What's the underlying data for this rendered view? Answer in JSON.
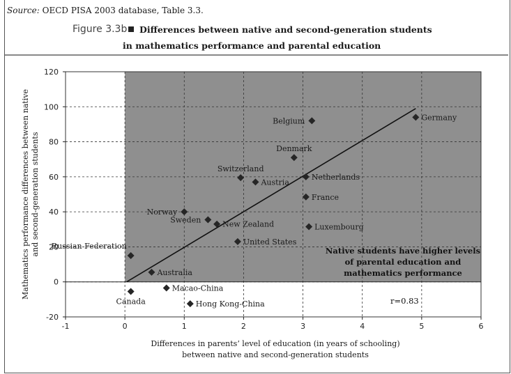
{
  "source": {
    "prefix": "Source:",
    "text": "OECD PISA 2003 database, Table 3.3."
  },
  "figure_label": "Figure 3.3b",
  "title_line1": "Differences between native and second-generation students",
  "title_line2": "in mathematics performance and parental education",
  "colors": {
    "shaded_quadrant": "#8f8f8f",
    "marker": "#262626",
    "fit_line": "#111111",
    "grid": "#333333"
  },
  "chart_data": {
    "type": "scatter",
    "title": "Differences between native and second-generation students in mathematics performance and parental education",
    "xlabel_line1": "Differences in parents’ level of education (in years of schooling)",
    "xlabel_line2": "between native and second-generation students",
    "ylabel_line1": "Mathematics performance differences between native",
    "ylabel_line2": "and second-generation students",
    "xlim": [
      -1,
      6
    ],
    "ylim": [
      -20,
      120
    ],
    "xticks": [
      -1,
      0,
      1,
      2,
      3,
      4,
      5,
      6
    ],
    "yticks": [
      -20,
      0,
      20,
      40,
      60,
      80,
      100,
      120
    ],
    "grid": "dashed",
    "shaded_region": "x >= 0 and y >= 0",
    "points": [
      {
        "label": "Germany",
        "x": 4.9,
        "y": 94,
        "anchor": "right"
      },
      {
        "label": "Belgium",
        "x": 3.15,
        "y": 92,
        "anchor": "left"
      },
      {
        "label": "Denmark",
        "x": 2.85,
        "y": 71,
        "anchor": "above"
      },
      {
        "label": "Switzerland",
        "x": 1.95,
        "y": 59.5,
        "anchor": "above"
      },
      {
        "label": "Austria",
        "x": 2.2,
        "y": 57,
        "anchor": "right"
      },
      {
        "label": "Netherlands",
        "x": 3.05,
        "y": 60,
        "anchor": "right"
      },
      {
        "label": "France",
        "x": 3.05,
        "y": 48.5,
        "anchor": "right"
      },
      {
        "label": "Norway",
        "x": 1.0,
        "y": 40,
        "anchor": "left"
      },
      {
        "label": "Sweden",
        "x": 1.4,
        "y": 35.5,
        "anchor": "left"
      },
      {
        "label": "New Zealand",
        "x": 1.55,
        "y": 33,
        "anchor": "right"
      },
      {
        "label": "Luxembourg",
        "x": 3.1,
        "y": 31.5,
        "anchor": "right"
      },
      {
        "label": "United States",
        "x": 1.9,
        "y": 23,
        "anchor": "right"
      },
      {
        "label": "Russian Federation",
        "x": 0.1,
        "y": 15,
        "anchor": "left-above"
      },
      {
        "label": "Australia",
        "x": 0.45,
        "y": 5.5,
        "anchor": "right"
      },
      {
        "label": "Macao-China",
        "x": 0.7,
        "y": -3.5,
        "anchor": "right"
      },
      {
        "label": "Canada",
        "x": 0.1,
        "y": -5.5,
        "anchor": "below"
      },
      {
        "label": "Hong Kong-China",
        "x": 1.1,
        "y": -12.5,
        "anchor": "right"
      }
    ],
    "fit_line": {
      "x1": 0.03,
      "y1": 0,
      "x2": 4.9,
      "y2": 99
    },
    "annotation_lines": [
      "Native students have higher levels",
      "of parental education and",
      "mathematics performance"
    ],
    "r_label": "r=0.83"
  }
}
